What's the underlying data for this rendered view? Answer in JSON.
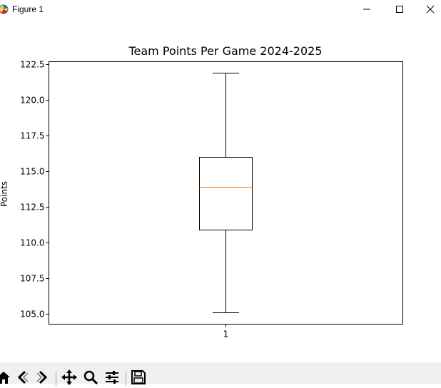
{
  "window": {
    "title": "Figure 1"
  },
  "toolbar": {
    "buttons": [
      "home-icon",
      "back-icon",
      "forward-icon",
      "pan-icon",
      "zoom-icon",
      "configure-subplots-icon",
      "save-icon"
    ]
  },
  "colors": {
    "median": "#ff7f0e",
    "box": "#000000"
  },
  "chart_data": {
    "type": "box",
    "title": "Team Points Per Game 2024-2025",
    "xlabel": "",
    "ylabel": "Points",
    "categories": [
      "1"
    ],
    "ylim": [
      104.3,
      122.7
    ],
    "yticks": [
      105.0,
      107.5,
      110.0,
      112.5,
      115.0,
      117.5,
      120.0,
      122.5
    ],
    "ytick_labels": [
      "105.0",
      "107.5",
      "110.0",
      "112.5",
      "115.0",
      "117.5",
      "120.0",
      "122.5"
    ],
    "boxes": [
      {
        "label": "1",
        "whisker_low": 105.1,
        "q1": 110.9,
        "median": 113.9,
        "q3": 116.0,
        "whisker_high": 121.9
      }
    ],
    "grid": false
  }
}
